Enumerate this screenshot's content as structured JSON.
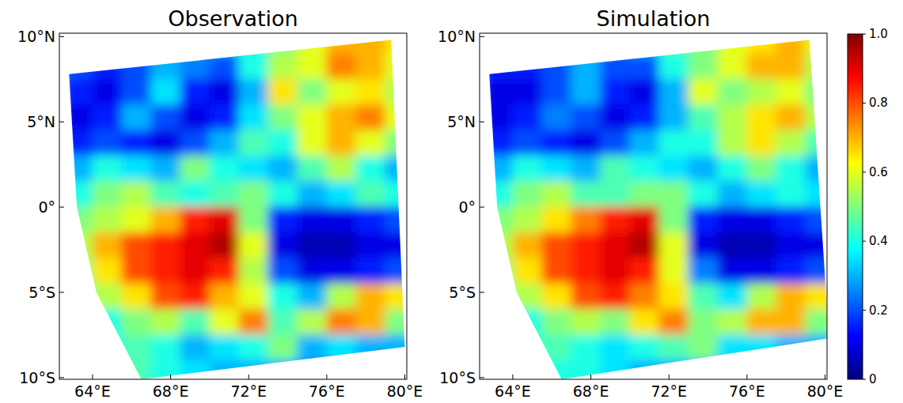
{
  "chart_data": [
    {
      "type": "heatmap",
      "title": "Observation",
      "x": [
        63.25,
        64.75,
        66.25,
        67.75,
        69.25,
        70.75,
        72.25,
        73.75,
        75.25,
        76.75,
        78.25,
        79.75
      ],
      "y": [
        9.75,
        8.25,
        6.75,
        5.25,
        3.75,
        2.25,
        0.75,
        -0.75,
        -2.25,
        -3.75,
        -5.25,
        -6.75,
        -8.25,
        -9.75
      ],
      "values": [
        [
          0.2,
          0.2,
          0.2,
          0.25,
          0.3,
          0.35,
          0.4,
          0.5,
          0.6,
          0.7,
          0.7,
          0.65
        ],
        [
          0.2,
          0.15,
          0.2,
          0.3,
          0.25,
          0.2,
          0.4,
          0.55,
          0.6,
          0.75,
          0.7,
          0.6
        ],
        [
          0.15,
          0.1,
          0.2,
          0.35,
          0.15,
          0.1,
          0.3,
          0.65,
          0.5,
          0.6,
          0.65,
          0.55
        ],
        [
          0.1,
          0.15,
          0.3,
          0.2,
          0.1,
          0.15,
          0.35,
          0.5,
          0.6,
          0.7,
          0.75,
          0.6
        ],
        [
          0.15,
          0.2,
          0.15,
          0.1,
          0.2,
          0.3,
          0.45,
          0.4,
          0.6,
          0.7,
          0.6,
          0.5
        ],
        [
          0.3,
          0.4,
          0.35,
          0.3,
          0.5,
          0.4,
          0.35,
          0.3,
          0.45,
          0.55,
          0.4,
          0.3
        ],
        [
          0.4,
          0.5,
          0.55,
          0.45,
          0.4,
          0.45,
          0.5,
          0.4,
          0.3,
          0.35,
          0.45,
          0.4
        ],
        [
          0.5,
          0.55,
          0.6,
          0.7,
          0.85,
          0.9,
          0.5,
          0.15,
          0.1,
          0.1,
          0.15,
          0.2
        ],
        [
          0.55,
          0.7,
          0.8,
          0.85,
          0.9,
          0.95,
          0.6,
          0.1,
          0.05,
          0.05,
          0.1,
          0.1
        ],
        [
          0.5,
          0.65,
          0.8,
          0.85,
          0.9,
          0.85,
          0.55,
          0.2,
          0.1,
          0.1,
          0.15,
          0.2
        ],
        [
          0.45,
          0.55,
          0.65,
          0.8,
          0.85,
          0.7,
          0.6,
          0.4,
          0.3,
          0.55,
          0.7,
          0.65
        ],
        [
          0.4,
          0.4,
          0.5,
          0.55,
          0.45,
          0.6,
          0.75,
          0.45,
          0.55,
          0.75,
          0.7,
          0.5
        ],
        [
          0.35,
          0.4,
          0.45,
          0.4,
          0.3,
          0.35,
          0.4,
          0.5,
          0.3,
          0.35,
          0.3,
          0.3
        ],
        [
          0.3,
          0.35,
          0.45,
          0.4,
          0.35,
          0.3,
          0.3,
          0.3,
          0.25,
          0.3,
          0.25,
          0.2
        ]
      ],
      "swath_lon": [
        62.8,
        79.3,
        80.0,
        66.5,
        64.2,
        63.2
      ],
      "swath_lat": [
        7.8,
        9.8,
        -8.2,
        -10.1,
        -5.0,
        0.0
      ],
      "xlim": [
        62.3,
        80.1
      ],
      "ylim": [
        -10.1,
        10.2
      ],
      "xticks": [
        {
          "value": 64,
          "label": "64°E"
        },
        {
          "value": 68,
          "label": "68°E"
        },
        {
          "value": 72,
          "label": "72°E"
        },
        {
          "value": 76,
          "label": "76°E"
        },
        {
          "value": 80,
          "label": "80°E"
        }
      ],
      "yticks": [
        {
          "value": -10,
          "label": "10°S"
        },
        {
          "value": -5,
          "label": "5°S"
        },
        {
          "value": 0,
          "label": "0°"
        },
        {
          "value": 5,
          "label": "5°N"
        },
        {
          "value": 10,
          "label": "10°N"
        }
      ]
    },
    {
      "type": "heatmap",
      "title": "Simulation",
      "x": [
        63.25,
        64.75,
        66.25,
        67.75,
        69.25,
        70.75,
        72.25,
        73.75,
        75.25,
        76.75,
        78.25,
        79.75
      ],
      "y": [
        9.75,
        8.25,
        6.75,
        5.25,
        3.75,
        2.25,
        0.75,
        -0.75,
        -2.25,
        -3.75,
        -5.25,
        -6.75,
        -8.25,
        -9.75
      ],
      "values": [
        [
          0.2,
          0.2,
          0.2,
          0.25,
          0.3,
          0.35,
          0.45,
          0.5,
          0.6,
          0.65,
          0.7,
          0.6
        ],
        [
          0.15,
          0.15,
          0.2,
          0.3,
          0.2,
          0.2,
          0.4,
          0.5,
          0.6,
          0.7,
          0.7,
          0.55
        ],
        [
          0.1,
          0.1,
          0.2,
          0.3,
          0.15,
          0.1,
          0.3,
          0.6,
          0.5,
          0.55,
          0.6,
          0.5
        ],
        [
          0.1,
          0.15,
          0.25,
          0.2,
          0.1,
          0.15,
          0.3,
          0.45,
          0.55,
          0.65,
          0.7,
          0.55
        ],
        [
          0.15,
          0.2,
          0.15,
          0.1,
          0.2,
          0.3,
          0.4,
          0.4,
          0.55,
          0.65,
          0.55,
          0.45
        ],
        [
          0.3,
          0.4,
          0.35,
          0.3,
          0.45,
          0.4,
          0.35,
          0.3,
          0.4,
          0.5,
          0.4,
          0.3
        ],
        [
          0.4,
          0.5,
          0.55,
          0.45,
          0.45,
          0.5,
          0.5,
          0.4,
          0.3,
          0.35,
          0.4,
          0.35
        ],
        [
          0.5,
          0.55,
          0.65,
          0.75,
          0.85,
          0.9,
          0.5,
          0.15,
          0.1,
          0.1,
          0.15,
          0.2
        ],
        [
          0.55,
          0.7,
          0.8,
          0.85,
          0.9,
          0.95,
          0.6,
          0.1,
          0.05,
          0.05,
          0.1,
          0.1
        ],
        [
          0.5,
          0.65,
          0.8,
          0.85,
          0.9,
          0.85,
          0.6,
          0.25,
          0.1,
          0.1,
          0.15,
          0.2
        ],
        [
          0.45,
          0.55,
          0.65,
          0.8,
          0.85,
          0.75,
          0.65,
          0.45,
          0.35,
          0.55,
          0.7,
          0.65
        ],
        [
          0.4,
          0.4,
          0.5,
          0.55,
          0.5,
          0.65,
          0.75,
          0.5,
          0.55,
          0.7,
          0.7,
          0.5
        ],
        [
          0.35,
          0.4,
          0.45,
          0.4,
          0.35,
          0.4,
          0.45,
          0.5,
          0.35,
          0.35,
          0.3,
          0.3
        ],
        [
          0.3,
          0.35,
          0.4,
          0.4,
          0.35,
          0.3,
          0.3,
          0.3,
          0.25,
          0.3,
          0.25,
          0.2
        ]
      ],
      "swath_lon": [
        62.8,
        79.2,
        80.2,
        66.5,
        64.2,
        63.2
      ],
      "swath_lat": [
        7.8,
        9.8,
        -7.7,
        -10.1,
        -5.0,
        0.0
      ],
      "xlim": [
        62.3,
        80.1
      ],
      "ylim": [
        -10.1,
        10.2
      ],
      "xticks": [
        {
          "value": 64,
          "label": "64°E"
        },
        {
          "value": 68,
          "label": "68°E"
        },
        {
          "value": 72,
          "label": "72°E"
        },
        {
          "value": 76,
          "label": "76°E"
        },
        {
          "value": 80,
          "label": "80°E"
        }
      ],
      "yticks": [
        {
          "value": -10,
          "label": "10°S"
        },
        {
          "value": -5,
          "label": "5°S"
        },
        {
          "value": 0,
          "label": "0°"
        },
        {
          "value": 5,
          "label": "5°N"
        },
        {
          "value": 10,
          "label": "10°N"
        }
      ],
      "colorbar_range": [
        0,
        1
      ],
      "colorbar_ticks": [
        0,
        0.2,
        0.4,
        0.6,
        0.8,
        {
          "value": 1,
          "label": "1.0"
        }
      ]
    }
  ]
}
